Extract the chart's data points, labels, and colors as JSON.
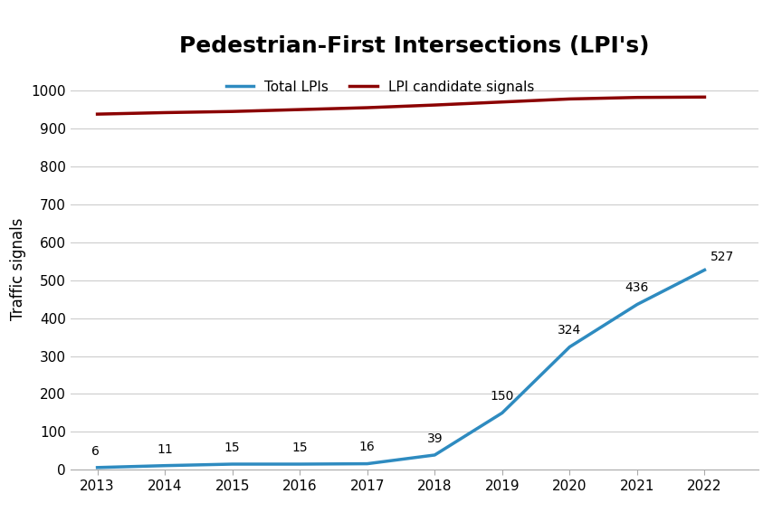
{
  "title": "Pedestrian-First Intersections (LPI's)",
  "ylabel": "Traffic signals",
  "years": [
    2013,
    2014,
    2015,
    2016,
    2017,
    2018,
    2019,
    2020,
    2021,
    2022
  ],
  "total_lpis": [
    6,
    11,
    15,
    15,
    16,
    39,
    150,
    324,
    436,
    527
  ],
  "lpi_candidates": [
    938,
    942,
    945,
    950,
    955,
    962,
    970,
    978,
    982,
    983
  ],
  "lpi_color": "#2E8BC0",
  "candidate_color": "#8B0000",
  "ylim": [
    0,
    1060
  ],
  "yticks": [
    0,
    100,
    200,
    300,
    400,
    500,
    600,
    700,
    800,
    900,
    1000
  ],
  "legend_labels": [
    "Total LPIs",
    "LPI candidate signals"
  ],
  "bg_color": "#ffffff",
  "grid_color": "#cccccc",
  "line_width": 2.5,
  "annotation_fontsize": 10,
  "title_fontsize": 18,
  "label_fontsize": 12
}
